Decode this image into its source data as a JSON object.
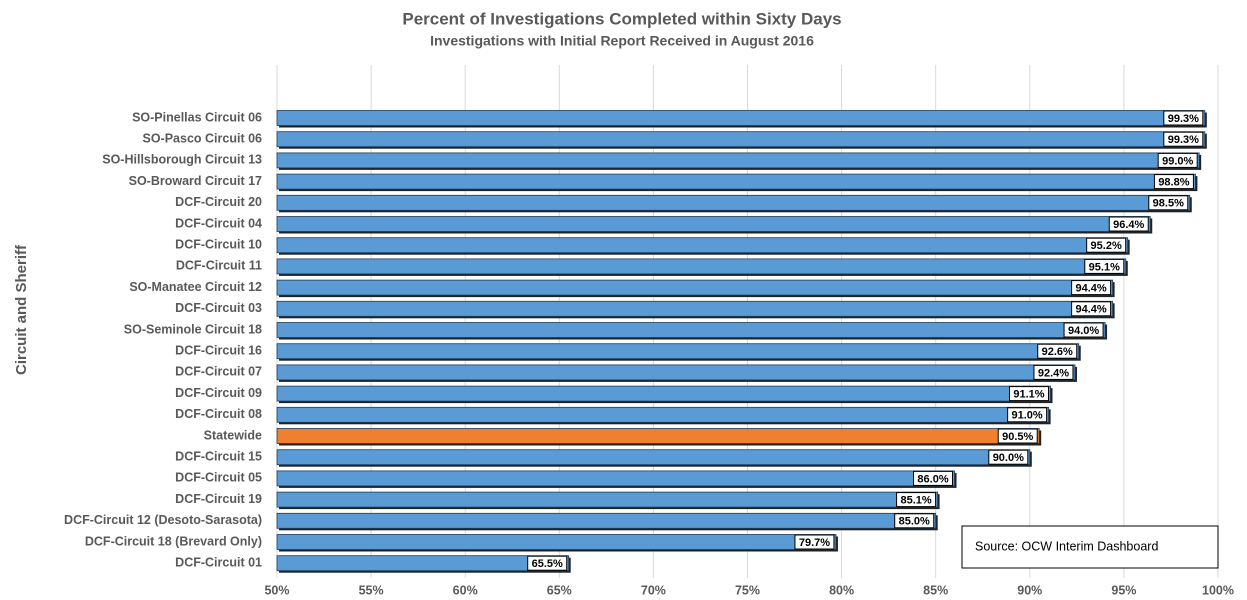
{
  "chart_data": {
    "type": "hbar",
    "title": "Percent of Investigations Completed within Sixty Days",
    "subtitle": "Investigations with Initial Report Received in August 2016",
    "y_label": "Circuit and Sheriff",
    "annotation": "Source: OCW Interim Dashboard",
    "categories": [
      "SO-Pinellas Circuit 06",
      "SO-Pasco Circuit 06",
      "SO-Hillsborough Circuit 13",
      "SO-Broward Circuit 17",
      "DCF-Circuit 20",
      "DCF-Circuit 04",
      "DCF-Circuit 10",
      "DCF-Circuit 11",
      "SO-Manatee Circuit 12",
      "DCF-Circuit 03",
      "SO-Seminole Circuit 18",
      "DCF-Circuit 16",
      "DCF-Circuit 07",
      "DCF-Circuit 09",
      "DCF-Circuit 08",
      "Statewide",
      "DCF-Circuit 15",
      "DCF-Circuit 05",
      "DCF-Circuit 19",
      "DCF-Circuit 12 (Desoto-Sarasota)",
      "DCF-Circuit 18 (Brevard Only)",
      "DCF-Circuit 01"
    ],
    "values": [
      99.3,
      99.3,
      99.0,
      98.8,
      98.5,
      96.4,
      95.2,
      95.1,
      94.4,
      94.4,
      94.0,
      92.6,
      92.4,
      91.1,
      91.0,
      90.5,
      90.0,
      86.0,
      85.1,
      85.0,
      79.7,
      65.5
    ],
    "value_labels": [
      "99.3%",
      "99.3%",
      "99.0%",
      "98.8%",
      "98.5%",
      "96.4%",
      "95.2%",
      "95.1%",
      "94.4%",
      "94.4%",
      "94.0%",
      "92.6%",
      "92.4%",
      "91.1%",
      "91.0%",
      "90.5%",
      "90.0%",
      "86.0%",
      "85.1%",
      "85.0%",
      "79.7%",
      "65.5%"
    ],
    "colors": [
      "#5b9bd5",
      "#5b9bd5",
      "#5b9bd5",
      "#5b9bd5",
      "#5b9bd5",
      "#5b9bd5",
      "#5b9bd5",
      "#5b9bd5",
      "#5b9bd5",
      "#5b9bd5",
      "#5b9bd5",
      "#5b9bd5",
      "#5b9bd5",
      "#5b9bd5",
      "#5b9bd5",
      "#f07f30",
      "#5b9bd5",
      "#5b9bd5",
      "#5b9bd5",
      "#5b9bd5",
      "#5b9bd5",
      "#5b9bd5"
    ],
    "xlim": [
      50,
      100
    ],
    "xticks": [
      {
        "value": 50,
        "label": "50%"
      },
      {
        "value": 55,
        "label": "55%"
      },
      {
        "value": 60,
        "label": "60%"
      },
      {
        "value": 65,
        "label": "65%"
      },
      {
        "value": 70,
        "label": "70%"
      },
      {
        "value": 75,
        "label": "75%"
      },
      {
        "value": 80,
        "label": "80%"
      },
      {
        "value": 85,
        "label": "85%"
      },
      {
        "value": 90,
        "label": "90%"
      },
      {
        "value": 95,
        "label": "95%"
      },
      {
        "value": 100,
        "label": "100%"
      }
    ],
    "grid": true
  }
}
